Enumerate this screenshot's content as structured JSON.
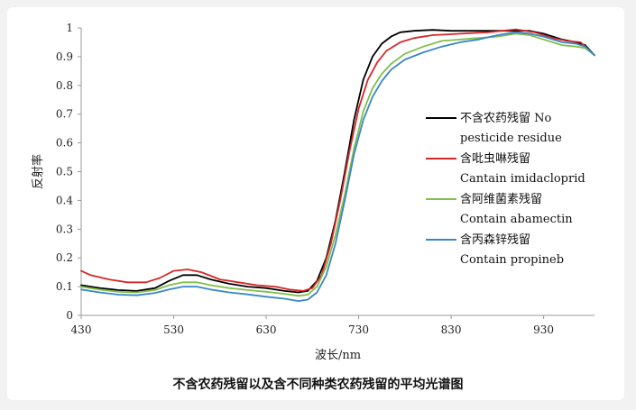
{
  "chart_data": {
    "type": "line",
    "title": "不含农药残留以及含不同种类农药残留的平均光谱图",
    "xlabel": "波长/nm",
    "ylabel": "反射率",
    "xlim": [
      430,
      985
    ],
    "ylim": [
      0,
      1
    ],
    "xticks": [
      430,
      530,
      630,
      730,
      830,
      930
    ],
    "yticks": [
      0,
      0.1,
      0.2,
      0.3,
      0.4,
      0.5,
      0.6,
      0.7,
      0.8,
      0.9,
      1
    ],
    "grid": false,
    "legend": "right",
    "series": [
      {
        "name": "不含农药残留 No pesticide residue",
        "name_line1": "不含农药残留 No",
        "name_line2": "pesticide residue",
        "color": "#000000",
        "points": [
          [
            430,
            0.105
          ],
          [
            450,
            0.095
          ],
          [
            470,
            0.088
          ],
          [
            490,
            0.085
          ],
          [
            510,
            0.095
          ],
          [
            525,
            0.12
          ],
          [
            540,
            0.14
          ],
          [
            555,
            0.14
          ],
          [
            570,
            0.125
          ],
          [
            590,
            0.11
          ],
          [
            610,
            0.1
          ],
          [
            630,
            0.095
          ],
          [
            650,
            0.085
          ],
          [
            665,
            0.08
          ],
          [
            675,
            0.085
          ],
          [
            685,
            0.12
          ],
          [
            695,
            0.2
          ],
          [
            705,
            0.33
          ],
          [
            715,
            0.5
          ],
          [
            725,
            0.68
          ],
          [
            735,
            0.82
          ],
          [
            745,
            0.9
          ],
          [
            755,
            0.945
          ],
          [
            765,
            0.97
          ],
          [
            775,
            0.985
          ],
          [
            790,
            0.99
          ],
          [
            810,
            0.993
          ],
          [
            830,
            0.99
          ],
          [
            860,
            0.99
          ],
          [
            880,
            0.99
          ],
          [
            900,
            0.99
          ],
          [
            915,
            0.99
          ],
          [
            930,
            0.98
          ],
          [
            950,
            0.96
          ],
          [
            965,
            0.95
          ],
          [
            975,
            0.94
          ],
          [
            985,
            0.905
          ]
        ]
      },
      {
        "name": "含吡虫啉残留 Cantain imidacloprid",
        "name_line1": "含吡虫啉残留",
        "name_line2": "Cantain imidacloprid",
        "color": "#d62728",
        "points": [
          [
            430,
            0.155
          ],
          [
            440,
            0.14
          ],
          [
            460,
            0.125
          ],
          [
            480,
            0.115
          ],
          [
            500,
            0.115
          ],
          [
            515,
            0.13
          ],
          [
            530,
            0.155
          ],
          [
            545,
            0.16
          ],
          [
            560,
            0.15
          ],
          [
            580,
            0.125
          ],
          [
            600,
            0.115
          ],
          [
            620,
            0.105
          ],
          [
            640,
            0.1
          ],
          [
            655,
            0.09
          ],
          [
            670,
            0.085
          ],
          [
            680,
            0.095
          ],
          [
            690,
            0.14
          ],
          [
            700,
            0.25
          ],
          [
            710,
            0.4
          ],
          [
            720,
            0.57
          ],
          [
            730,
            0.72
          ],
          [
            740,
            0.82
          ],
          [
            750,
            0.88
          ],
          [
            760,
            0.92
          ],
          [
            775,
            0.95
          ],
          [
            790,
            0.965
          ],
          [
            810,
            0.975
          ],
          [
            840,
            0.98
          ],
          [
            870,
            0.985
          ],
          [
            900,
            0.995
          ],
          [
            920,
            0.985
          ],
          [
            940,
            0.965
          ],
          [
            955,
            0.955
          ],
          [
            970,
            0.95
          ],
          [
            985,
            0.905
          ]
        ]
      },
      {
        "name": "含阿维菌素残留 Contain abamectin",
        "name_line1": "含阿维菌素残留",
        "name_line2": "Contain abamectin",
        "color": "#7fbf4a",
        "points": [
          [
            430,
            0.1
          ],
          [
            450,
            0.09
          ],
          [
            470,
            0.082
          ],
          [
            490,
            0.08
          ],
          [
            510,
            0.088
          ],
          [
            525,
            0.105
          ],
          [
            540,
            0.115
          ],
          [
            555,
            0.115
          ],
          [
            570,
            0.105
          ],
          [
            590,
            0.095
          ],
          [
            610,
            0.088
          ],
          [
            630,
            0.082
          ],
          [
            650,
            0.075
          ],
          [
            665,
            0.068
          ],
          [
            675,
            0.072
          ],
          [
            685,
            0.1
          ],
          [
            695,
            0.17
          ],
          [
            705,
            0.28
          ],
          [
            715,
            0.42
          ],
          [
            725,
            0.58
          ],
          [
            735,
            0.71
          ],
          [
            745,
            0.79
          ],
          [
            755,
            0.84
          ],
          [
            765,
            0.875
          ],
          [
            780,
            0.91
          ],
          [
            800,
            0.935
          ],
          [
            820,
            0.955
          ],
          [
            840,
            0.96
          ],
          [
            860,
            0.965
          ],
          [
            880,
            0.97
          ],
          [
            900,
            0.98
          ],
          [
            915,
            0.975
          ],
          [
            930,
            0.96
          ],
          [
            950,
            0.94
          ],
          [
            965,
            0.935
          ],
          [
            975,
            0.93
          ],
          [
            985,
            0.905
          ]
        ]
      },
      {
        "name": "含丙森锌残留 Contain propineb",
        "name_line1": "含丙森锌残留",
        "name_line2": "Contain propineb",
        "color": "#3a86c8",
        "points": [
          [
            430,
            0.09
          ],
          [
            450,
            0.08
          ],
          [
            470,
            0.072
          ],
          [
            490,
            0.07
          ],
          [
            510,
            0.078
          ],
          [
            525,
            0.09
          ],
          [
            540,
            0.1
          ],
          [
            555,
            0.1
          ],
          [
            570,
            0.09
          ],
          [
            590,
            0.08
          ],
          [
            610,
            0.073
          ],
          [
            630,
            0.065
          ],
          [
            650,
            0.058
          ],
          [
            665,
            0.05
          ],
          [
            675,
            0.055
          ],
          [
            685,
            0.08
          ],
          [
            695,
            0.14
          ],
          [
            705,
            0.25
          ],
          [
            715,
            0.4
          ],
          [
            725,
            0.56
          ],
          [
            735,
            0.68
          ],
          [
            745,
            0.76
          ],
          [
            755,
            0.815
          ],
          [
            765,
            0.855
          ],
          [
            780,
            0.89
          ],
          [
            800,
            0.915
          ],
          [
            820,
            0.935
          ],
          [
            840,
            0.95
          ],
          [
            860,
            0.96
          ],
          [
            880,
            0.975
          ],
          [
            900,
            0.985
          ],
          [
            915,
            0.98
          ],
          [
            930,
            0.97
          ],
          [
            950,
            0.95
          ],
          [
            965,
            0.945
          ],
          [
            975,
            0.935
          ],
          [
            985,
            0.905
          ]
        ]
      }
    ]
  }
}
